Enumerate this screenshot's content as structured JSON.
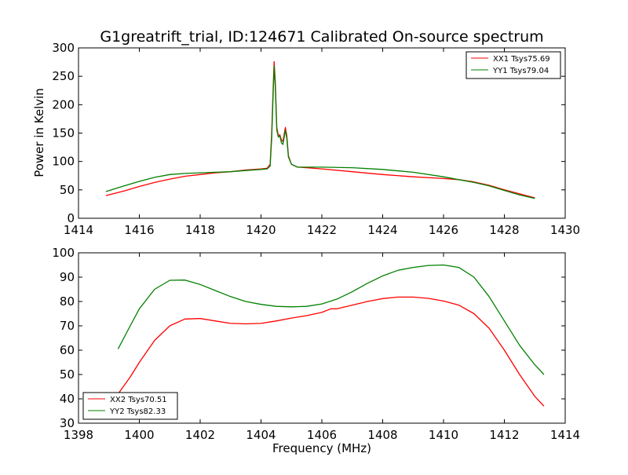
{
  "chart_data": [
    {
      "type": "line",
      "title": "G1greatrift_trial, ID:124671 Calibrated On-source spectrum",
      "xlabel": "",
      "ylabel": "Power in Kelvin",
      "xlim": [
        1414,
        1430
      ],
      "ylim": [
        0,
        300
      ],
      "xticks": [
        1414,
        1416,
        1418,
        1420,
        1422,
        1424,
        1426,
        1428,
        1430
      ],
      "yticks": [
        0,
        50,
        100,
        150,
        200,
        250,
        300
      ],
      "legend_position": "top-right",
      "series": [
        {
          "name": "XX1 Tsys75.69",
          "color": "#ff0000",
          "points": [
            [
              1414.9,
              40
            ],
            [
              1415.5,
              48
            ],
            [
              1416,
              56
            ],
            [
              1416.5,
              63
            ],
            [
              1417,
              69
            ],
            [
              1417.5,
              74
            ],
            [
              1418,
              77
            ],
            [
              1418.5,
              80
            ],
            [
              1419,
              82
            ],
            [
              1419.5,
              85
            ],
            [
              1420,
              87
            ],
            [
              1420.2,
              88
            ],
            [
              1420.3,
              95
            ],
            [
              1420.35,
              150
            ],
            [
              1420.4,
              230
            ],
            [
              1420.43,
              276
            ],
            [
              1420.47,
              240
            ],
            [
              1420.52,
              160
            ],
            [
              1420.57,
              145
            ],
            [
              1420.62,
              147
            ],
            [
              1420.67,
              138
            ],
            [
              1420.72,
              135
            ],
            [
              1420.77,
              150
            ],
            [
              1420.8,
              160
            ],
            [
              1420.85,
              145
            ],
            [
              1420.9,
              110
            ],
            [
              1421,
              95
            ],
            [
              1421.2,
              90
            ],
            [
              1421.5,
              89
            ],
            [
              1422,
              87
            ],
            [
              1423,
              82
            ],
            [
              1424,
              77
            ],
            [
              1425,
              73
            ],
            [
              1426,
              70
            ],
            [
              1426.5,
              68
            ],
            [
              1427,
              64
            ],
            [
              1427.5,
              58
            ],
            [
              1428,
              50
            ],
            [
              1428.5,
              43
            ],
            [
              1429,
              36
            ]
          ]
        },
        {
          "name": "YY1 Tsys79.04",
          "color": "#008000",
          "points": [
            [
              1414.9,
              47
            ],
            [
              1415.5,
              57
            ],
            [
              1416,
              65
            ],
            [
              1416.5,
              72
            ],
            [
              1417,
              77
            ],
            [
              1417.5,
              79
            ],
            [
              1418,
              80
            ],
            [
              1418.5,
              81
            ],
            [
              1419,
              82
            ],
            [
              1419.5,
              84
            ],
            [
              1420,
              86
            ],
            [
              1420.2,
              87
            ],
            [
              1420.3,
              92
            ],
            [
              1420.35,
              140
            ],
            [
              1420.4,
              220
            ],
            [
              1420.43,
              268
            ],
            [
              1420.47,
              230
            ],
            [
              1420.52,
              155
            ],
            [
              1420.57,
              143
            ],
            [
              1420.62,
              145
            ],
            [
              1420.67,
              133
            ],
            [
              1420.72,
              130
            ],
            [
              1420.77,
              145
            ],
            [
              1420.8,
              155
            ],
            [
              1420.85,
              140
            ],
            [
              1420.9,
              108
            ],
            [
              1421,
              95
            ],
            [
              1421.2,
              90
            ],
            [
              1421.5,
              90
            ],
            [
              1422,
              90
            ],
            [
              1423,
              89
            ],
            [
              1424,
              86
            ],
            [
              1425,
              81
            ],
            [
              1426,
              73
            ],
            [
              1426.5,
              68
            ],
            [
              1427,
              63
            ],
            [
              1427.5,
              57
            ],
            [
              1428,
              49
            ],
            [
              1428.5,
              41
            ],
            [
              1429,
              35
            ]
          ]
        }
      ]
    },
    {
      "type": "line",
      "title": "",
      "xlabel": "Frequency (MHz)",
      "ylabel": "",
      "xlim": [
        1398,
        1414
      ],
      "ylim": [
        30,
        100
      ],
      "xticks": [
        1398,
        1400,
        1402,
        1404,
        1406,
        1408,
        1410,
        1412,
        1414
      ],
      "yticks": [
        30,
        40,
        50,
        60,
        70,
        80,
        90,
        100
      ],
      "legend_position": "bottom-left",
      "series": [
        {
          "name": "XX2 Tsys70.51",
          "color": "#ff0000",
          "points": [
            [
              1399.3,
              42
            ],
            [
              1399.7,
              49
            ],
            [
              1400,
              55
            ],
            [
              1400.5,
              64
            ],
            [
              1401,
              70
            ],
            [
              1401.5,
              72.8
            ],
            [
              1402,
              73
            ],
            [
              1402.5,
              72
            ],
            [
              1403,
              71
            ],
            [
              1403.5,
              70.8
            ],
            [
              1404,
              71
            ],
            [
              1404.5,
              72
            ],
            [
              1405,
              73.2
            ],
            [
              1405.5,
              74.2
            ],
            [
              1406,
              75.5
            ],
            [
              1406.3,
              77
            ],
            [
              1406.5,
              77
            ],
            [
              1407,
              78.5
            ],
            [
              1407.5,
              80
            ],
            [
              1408,
              81.2
            ],
            [
              1408.5,
              81.8
            ],
            [
              1409,
              81.8
            ],
            [
              1409.5,
              81.3
            ],
            [
              1410,
              80.2
            ],
            [
              1410.5,
              78.5
            ],
            [
              1411,
              75
            ],
            [
              1411.5,
              69
            ],
            [
              1412,
              60
            ],
            [
              1412.5,
              50
            ],
            [
              1413,
              41
            ],
            [
              1413.3,
              37
            ]
          ]
        },
        {
          "name": "YY2 Tsys82.33",
          "color": "#008000",
          "points": [
            [
              1399.3,
              60.5
            ],
            [
              1399.7,
              70
            ],
            [
              1400,
              77
            ],
            [
              1400.5,
              85
            ],
            [
              1401,
              88.7
            ],
            [
              1401.5,
              88.8
            ],
            [
              1402,
              87
            ],
            [
              1402.5,
              84.5
            ],
            [
              1403,
              82
            ],
            [
              1403.5,
              80
            ],
            [
              1404,
              78.8
            ],
            [
              1404.5,
              78
            ],
            [
              1405,
              77.8
            ],
            [
              1405.5,
              78
            ],
            [
              1406,
              79
            ],
            [
              1406.5,
              81
            ],
            [
              1407,
              84
            ],
            [
              1407.5,
              87.5
            ],
            [
              1408,
              90.5
            ],
            [
              1408.5,
              92.8
            ],
            [
              1409,
              94
            ],
            [
              1409.5,
              94.8
            ],
            [
              1410,
              95
            ],
            [
              1410.5,
              94
            ],
            [
              1411,
              90
            ],
            [
              1411.5,
              82
            ],
            [
              1412,
              72
            ],
            [
              1412.5,
              62
            ],
            [
              1413,
              54
            ],
            [
              1413.3,
              50
            ]
          ]
        }
      ]
    }
  ]
}
